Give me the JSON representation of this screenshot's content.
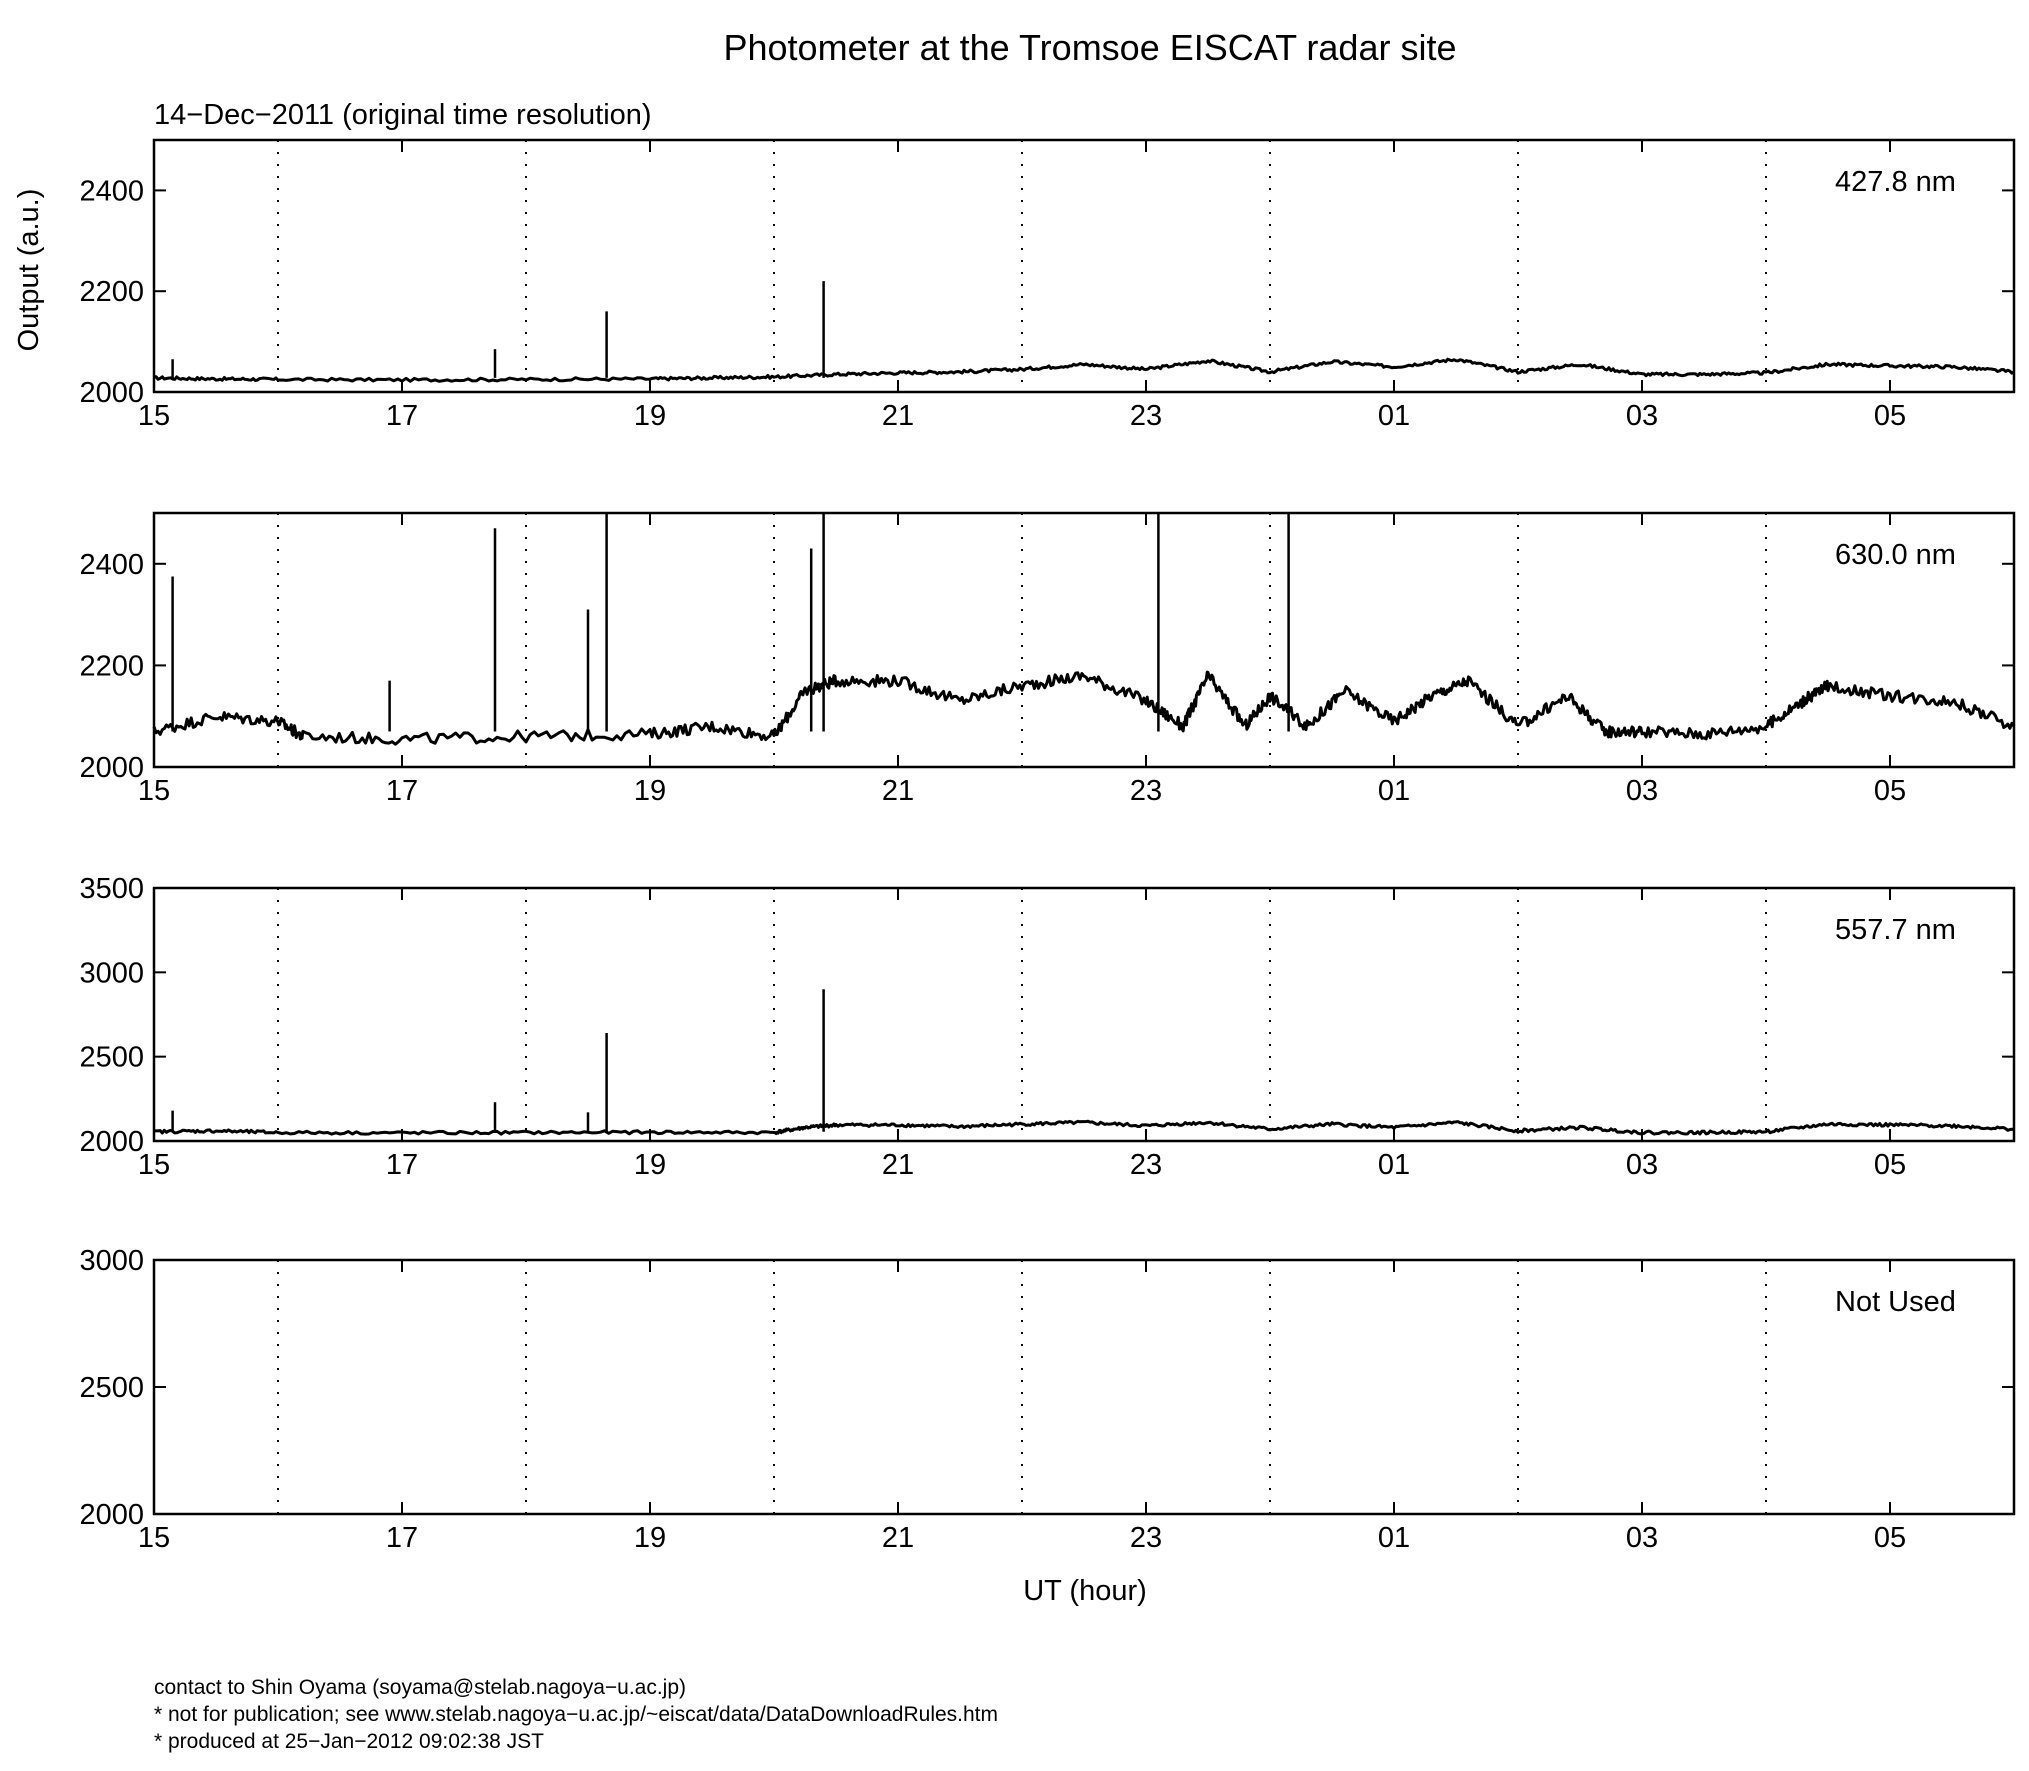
{
  "figure": {
    "title": "Photometer at the Tromsoe EISCAT radar site",
    "subtitle": "14−Dec−2011 (original time resolution)",
    "xlabel": "UT (hour)",
    "ylabel": "Output (a.u.)"
  },
  "footer": {
    "contact": "contact to Shin Oyama (soyama@stelab.nagoya−u.ac.jp)",
    "notice": "* not for publication; see www.stelab.nagoya−u.ac.jp/~eiscat/data/DataDownloadRules.htm",
    "produced": "* produced at 25−Jan−2012 09:02:38 JST"
  },
  "chart_data": [
    {
      "type": "line",
      "label": "427.8 nm",
      "xlim": [
        15,
        30
      ],
      "ylim": [
        2000,
        2500
      ],
      "yticks": [
        "2000",
        "2200",
        "2400"
      ],
      "xticks": [
        "15",
        "17",
        "19",
        "21",
        "23",
        "01",
        "03",
        "05"
      ],
      "grid": "vertical dotted at each hour",
      "series": [
        {
          "x": [
            15,
            15.5,
            16,
            17,
            18,
            19,
            19.5,
            20,
            20.5,
            21,
            21.5,
            22,
            22.5,
            23,
            23.5,
            24,
            24.5,
            25,
            25.5,
            26,
            26.5,
            27,
            27.5,
            28,
            28.5,
            29,
            29.5,
            30
          ],
          "y": [
            2028,
            2026,
            2025,
            2024,
            2025,
            2026,
            2028,
            2030,
            2035,
            2038,
            2040,
            2045,
            2055,
            2045,
            2062,
            2040,
            2060,
            2050,
            2065,
            2040,
            2055,
            2035,
            2035,
            2038,
            2055,
            2052,
            2050,
            2040
          ]
        }
      ],
      "spikes": [
        {
          "x": 15.15,
          "y": 2065
        },
        {
          "x": 17.75,
          "y": 2085
        },
        {
          "x": 18.65,
          "y": 2160
        },
        {
          "x": 20.4,
          "y": 2220
        }
      ]
    },
    {
      "type": "line",
      "label": "630.0 nm",
      "xlim": [
        15,
        30
      ],
      "ylim": [
        2000,
        2500
      ],
      "yticks": [
        "2000",
        "2200",
        "2400"
      ],
      "xticks": [
        "15",
        "17",
        "19",
        "21",
        "23",
        "01",
        "03",
        "05"
      ],
      "grid": "vertical dotted at each hour",
      "series": [
        {
          "x": [
            15,
            15.5,
            16,
            16.2,
            17,
            18,
            19,
            19.5,
            20,
            20.25,
            20.5,
            21,
            21.5,
            22,
            22.5,
            23,
            23.3,
            23.5,
            23.8,
            24,
            24.3,
            24.6,
            25,
            25.3,
            25.6,
            26,
            26.4,
            26.7,
            27,
            27.5,
            28,
            28.3,
            28.5,
            29,
            29.5,
            30
          ],
          "y": [
            2070,
            2100,
            2090,
            2060,
            2055,
            2060,
            2065,
            2080,
            2060,
            2150,
            2170,
            2170,
            2130,
            2160,
            2180,
            2130,
            2080,
            2180,
            2080,
            2140,
            2080,
            2150,
            2090,
            2140,
            2170,
            2080,
            2140,
            2070,
            2070,
            2065,
            2080,
            2130,
            2160,
            2140,
            2130,
            2080
          ]
        }
      ],
      "spikes": [
        {
          "x": 15.15,
          "y": 2375
        },
        {
          "x": 16.9,
          "y": 2170
        },
        {
          "x": 17.75,
          "y": 2470
        },
        {
          "x": 18.5,
          "y": 2310
        },
        {
          "x": 18.65,
          "y": 2500
        },
        {
          "x": 20.3,
          "y": 2430
        },
        {
          "x": 20.4,
          "y": 2500
        },
        {
          "x": 23.1,
          "y": 2500
        },
        {
          "x": 24.15,
          "y": 2500
        }
      ]
    },
    {
      "type": "line",
      "label": "557.7 nm",
      "xlim": [
        15,
        30
      ],
      "ylim": [
        2000,
        3500
      ],
      "yticks": [
        "2000",
        "2500",
        "3000",
        "3500"
      ],
      "xticks": [
        "15",
        "17",
        "19",
        "21",
        "23",
        "01",
        "03",
        "05"
      ],
      "grid": "vertical dotted at each hour",
      "series": [
        {
          "x": [
            15,
            15.5,
            16,
            17,
            18,
            19,
            20,
            20.25,
            20.5,
            21,
            21.5,
            22,
            22.5,
            23,
            23.5,
            24,
            24.5,
            25,
            25.5,
            26,
            26.5,
            27,
            27.5,
            28,
            28.5,
            29,
            29.5,
            30
          ],
          "y": [
            2055,
            2060,
            2050,
            2048,
            2050,
            2052,
            2050,
            2080,
            2095,
            2095,
            2085,
            2100,
            2110,
            2090,
            2110,
            2070,
            2100,
            2080,
            2110,
            2060,
            2080,
            2050,
            2050,
            2055,
            2100,
            2095,
            2090,
            2070
          ]
        }
      ],
      "spikes": [
        {
          "x": 15.15,
          "y": 2180
        },
        {
          "x": 17.75,
          "y": 2230
        },
        {
          "x": 18.5,
          "y": 2170
        },
        {
          "x": 18.65,
          "y": 2640
        },
        {
          "x": 20.4,
          "y": 2900
        }
      ]
    },
    {
      "type": "line",
      "label": "Not Used",
      "xlim": [
        15,
        30
      ],
      "ylim": [
        2000,
        3000
      ],
      "yticks": [
        "2000",
        "2500",
        "3000"
      ],
      "xticks": [
        "15",
        "17",
        "19",
        "21",
        "23",
        "01",
        "03",
        "05"
      ],
      "grid": "vertical dotted at each hour",
      "series": [],
      "spikes": []
    }
  ]
}
